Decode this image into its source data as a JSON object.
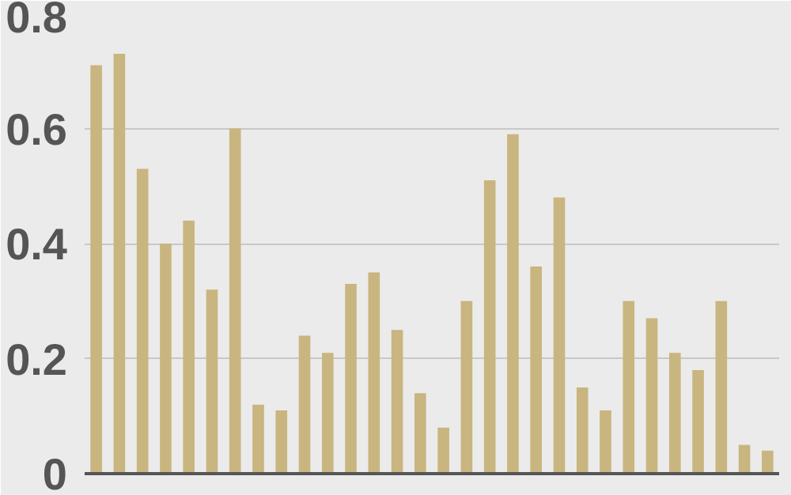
{
  "chart_data": {
    "type": "bar",
    "categories": [
      null,
      null,
      null,
      null,
      null,
      null,
      null,
      null,
      null,
      null,
      null,
      null,
      null,
      null,
      null,
      null,
      null,
      null,
      null,
      null,
      null,
      null,
      null,
      null,
      null,
      null,
      null,
      null,
      null,
      null
    ],
    "values": [
      0.71,
      0.73,
      0.53,
      0.4,
      0.44,
      0.32,
      0.6,
      0.12,
      0.11,
      0.24,
      0.21,
      0.33,
      0.35,
      0.25,
      0.14,
      0.08,
      0.3,
      0.51,
      0.59,
      0.36,
      0.48,
      0.15,
      0.11,
      0.3,
      0.27,
      0.21,
      0.18,
      0.3,
      0.05,
      0.04
    ],
    "color": "#c9b57f",
    "ylim": [
      0,
      0.8
    ],
    "yticks": [
      0,
      0.2,
      0.4,
      0.6,
      0.8
    ],
    "grid": "y",
    "tick_labels": "y"
  }
}
